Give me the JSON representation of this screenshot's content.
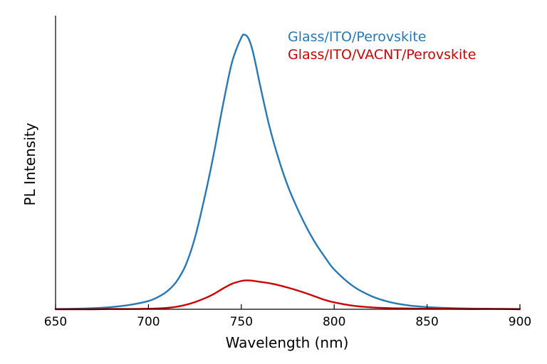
{
  "chart_data": {
    "type": "line",
    "title": "",
    "xlabel": "Wavelength (nm)",
    "ylabel": "PL Intensity",
    "xlim": [
      650,
      900
    ],
    "ylim": [
      0,
      1.07
    ],
    "x_ticks": [
      650,
      700,
      750,
      800,
      850,
      900
    ],
    "x_tick_labels": [
      "650",
      "700",
      "750",
      "800",
      "850",
      "900"
    ],
    "y_ticks_shown": false,
    "grid": false,
    "legend_position": "top-right",
    "x": [
      650,
      660,
      670,
      680,
      690,
      700,
      705,
      710,
      715,
      720,
      725,
      730,
      735,
      740,
      745,
      750,
      752,
      754,
      756,
      758,
      760,
      765,
      770,
      775,
      780,
      785,
      790,
      795,
      800,
      810,
      820,
      830,
      840,
      850,
      860,
      870,
      880,
      890,
      900
    ],
    "series": [
      {
        "name": "Glass/ITO/Perovskite",
        "color": "#2878b4",
        "values": [
          0.001,
          0.002,
          0.004,
          0.008,
          0.016,
          0.03,
          0.044,
          0.065,
          0.1,
          0.16,
          0.26,
          0.4,
          0.56,
          0.74,
          0.9,
          0.99,
          1.0,
          0.985,
          0.945,
          0.885,
          0.82,
          0.67,
          0.55,
          0.45,
          0.37,
          0.3,
          0.24,
          0.19,
          0.145,
          0.085,
          0.048,
          0.026,
          0.014,
          0.008,
          0.005,
          0.003,
          0.002,
          0.0015,
          0.001
        ]
      },
      {
        "name": "Glass/ITO/VACNT/Perovskite",
        "color": "#cc0000",
        "values": [
          0.0,
          0.0,
          0.0,
          0.001,
          0.001,
          0.002,
          0.003,
          0.005,
          0.009,
          0.016,
          0.026,
          0.039,
          0.055,
          0.075,
          0.093,
          0.103,
          0.105,
          0.105,
          0.104,
          0.102,
          0.1,
          0.095,
          0.088,
          0.079,
          0.069,
          0.058,
          0.046,
          0.034,
          0.025,
          0.013,
          0.007,
          0.004,
          0.003,
          0.002,
          0.002,
          0.001,
          0.001,
          0.001,
          0.0
        ]
      }
    ]
  }
}
